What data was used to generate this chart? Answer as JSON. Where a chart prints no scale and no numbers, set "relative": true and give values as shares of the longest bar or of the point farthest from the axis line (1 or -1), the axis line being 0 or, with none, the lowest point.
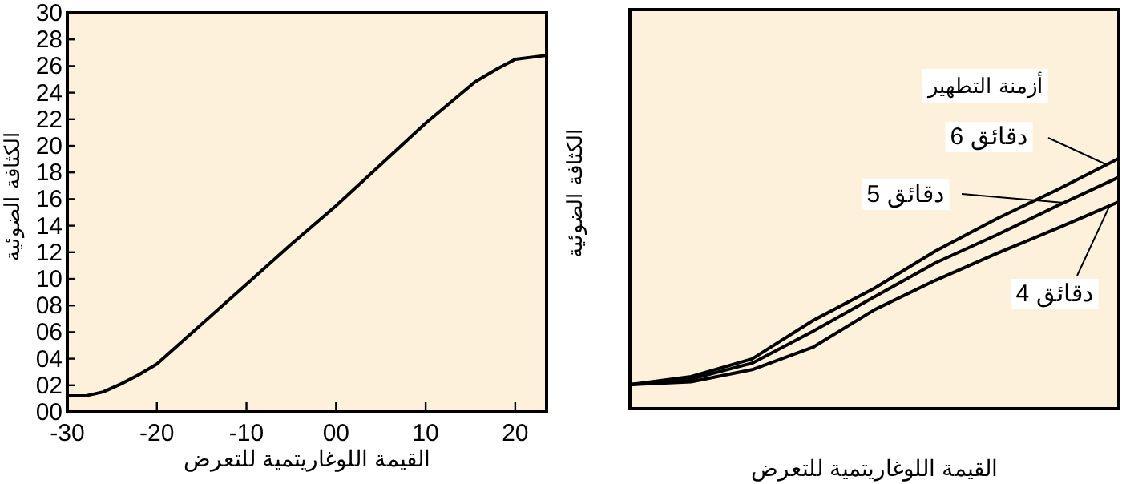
{
  "chart_data": [
    {
      "type": "line",
      "xlabel": "القيمة اللوغاريتمية للتعرض",
      "ylabel": "الكثافة الضوئية",
      "x": [
        -30,
        -28,
        -26,
        -24,
        -22,
        -20,
        -15,
        -10,
        -5,
        0,
        5,
        10,
        15.5,
        18,
        20,
        23.5
      ],
      "series": [
        {
          "color": "#000000",
          "values": [
            1.2,
            1.2,
            1.5,
            2.1,
            2.8,
            3.6,
            6.6,
            9.6,
            12.6,
            15.5,
            18.6,
            21.7,
            24.8,
            25.8,
            26.5,
            26.8
          ]
        }
      ],
      "xlim": [
        -30,
        23.5
      ],
      "xticks": [
        -30,
        -20,
        -10,
        {
          "value": 0,
          "label": "00"
        },
        10,
        20
      ],
      "ylim": [
        0,
        30
      ],
      "yticks": [
        {
          "value": 0,
          "label": "00"
        },
        {
          "value": 2,
          "label": "02"
        },
        {
          "value": 4,
          "label": "04"
        },
        {
          "value": 6,
          "label": "06"
        },
        {
          "value": 8,
          "label": "08"
        },
        10,
        12,
        14,
        16,
        18,
        20,
        22,
        24,
        26,
        28,
        30
      ],
      "grid": false,
      "marker": "none",
      "line_style": "solid"
    },
    {
      "type": "line",
      "xlabel": "القيمة اللوغاريتمية للتعرض",
      "ylabel": "الكثافة الضوئية",
      "legend_title": "أزمنة التطهير",
      "relative": true,
      "categories": [
        null,
        null,
        null,
        null,
        null,
        null,
        null,
        null,
        null
      ],
      "series": [
        {
          "name": "6 دقائق",
          "color": "#000000",
          "values": [
            0.096,
            0.128,
            0.199,
            0.353,
            0.481,
            0.63,
            0.759,
            0.876,
            1
          ]
        },
        {
          "name": "5 دقائق",
          "color": "#000000",
          "values": [
            0.096,
            0.118,
            0.182,
            0.31,
            0.447,
            0.583,
            0.694,
            0.812,
            0.925
          ]
        },
        {
          "name": "4 دقائق",
          "color": "#000000",
          "values": [
            0.096,
            0.107,
            0.156,
            0.246,
            0.395,
            0.513,
            0.62,
            0.722,
            0.827
          ]
        }
      ],
      "grid": false,
      "marker": "none",
      "line_style": "solid",
      "legend": "top right"
    }
  ]
}
